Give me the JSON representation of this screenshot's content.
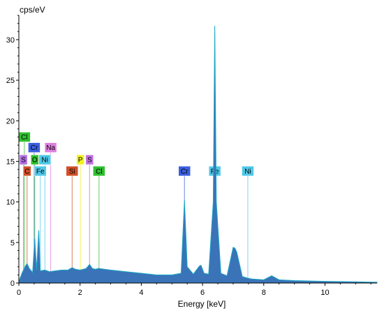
{
  "chart_data": {
    "type": "line",
    "title": "",
    "ylabel": "cps/eV",
    "xlabel": "Energy [keV]",
    "xlim": [
      0,
      11.7
    ],
    "ylim": [
      0,
      33
    ],
    "x_ticks": [
      0,
      2,
      4,
      6,
      8,
      10
    ],
    "y_ticks": [
      0,
      5,
      10,
      15,
      20,
      25,
      30
    ],
    "grid": false,
    "legend": "none",
    "colors": {
      "spectrum_fill": "#3a73b8",
      "spectrum_peak": "#1aa6c4",
      "marker_line": "#a9a9a9"
    },
    "series": [
      {
        "x": [
          0.0,
          0.1,
          0.2,
          0.27,
          0.34,
          0.45,
          0.52,
          0.58,
          0.65,
          0.7,
          0.85,
          1.0,
          1.2,
          1.4,
          1.6,
          1.74,
          1.85,
          2.0,
          2.1,
          2.2,
          2.31,
          2.4,
          2.5,
          2.6,
          2.8,
          3.0,
          3.5,
          4.0,
          4.5,
          5.0,
          5.3,
          5.41,
          5.5,
          5.7,
          5.9,
          5.95,
          6.05,
          6.2,
          6.35,
          6.4,
          6.45,
          6.6,
          6.8,
          7.0,
          7.06,
          7.12,
          7.3,
          7.48,
          7.6,
          8.0,
          8.26,
          8.5,
          9.0,
          10.0,
          11.0,
          11.7
        ],
        "y": [
          0.2,
          1.2,
          2.0,
          2.4,
          1.8,
          1.3,
          5.5,
          1.6,
          6.5,
          1.5,
          1.6,
          1.4,
          1.5,
          1.6,
          1.6,
          1.9,
          1.7,
          1.6,
          1.7,
          1.8,
          2.3,
          1.8,
          1.7,
          1.8,
          1.7,
          1.6,
          1.4,
          1.2,
          1.0,
          1.0,
          1.2,
          10.2,
          2.0,
          1.1,
          2.1,
          2.2,
          1.2,
          1.1,
          10.0,
          31.7,
          10.0,
          1.2,
          0.9,
          4.4,
          4.3,
          3.8,
          0.8,
          0.6,
          0.5,
          0.4,
          0.9,
          0.4,
          0.3,
          0.2,
          0.15,
          0.1
        ]
      }
    ],
    "element_markers": [
      {
        "label": "Cl",
        "energy": 0.18,
        "level": 18.0,
        "color": "#2fbf2f"
      },
      {
        "label": "Cr",
        "energy": 0.5,
        "level": 16.7,
        "color": "#3a5fe0"
      },
      {
        "label": "Na",
        "energy": 1.04,
        "level": 16.7,
        "color": "#e07fe0"
      },
      {
        "label": "S",
        "energy": 0.15,
        "level": 15.2,
        "color": "#b070e0"
      },
      {
        "label": "O",
        "energy": 0.52,
        "level": 15.2,
        "color": "#2fbf2f"
      },
      {
        "label": "Ni",
        "energy": 0.85,
        "level": 15.2,
        "color": "#50c8e8"
      },
      {
        "label": "P",
        "energy": 2.01,
        "level": 15.2,
        "color": "#f0f020"
      },
      {
        "label": "S",
        "energy": 2.31,
        "level": 15.2,
        "color": "#c070e0"
      },
      {
        "label": "C",
        "energy": 0.27,
        "level": 13.8,
        "color": "#d05028"
      },
      {
        "label": "Fe",
        "energy": 0.7,
        "level": 13.8,
        "color": "#50c8e8"
      },
      {
        "label": "Si",
        "energy": 1.74,
        "level": 13.8,
        "color": "#d05028"
      },
      {
        "label": "Cl",
        "energy": 2.62,
        "level": 13.8,
        "color": "#2fbf2f"
      },
      {
        "label": "Cr",
        "energy": 5.41,
        "level": 13.8,
        "color": "#3a5fe0"
      },
      {
        "label": "Fe",
        "energy": 6.4,
        "level": 13.8,
        "color": "#50c8e8"
      },
      {
        "label": "Ni",
        "energy": 7.48,
        "level": 13.8,
        "color": "#50c8e8"
      }
    ]
  }
}
